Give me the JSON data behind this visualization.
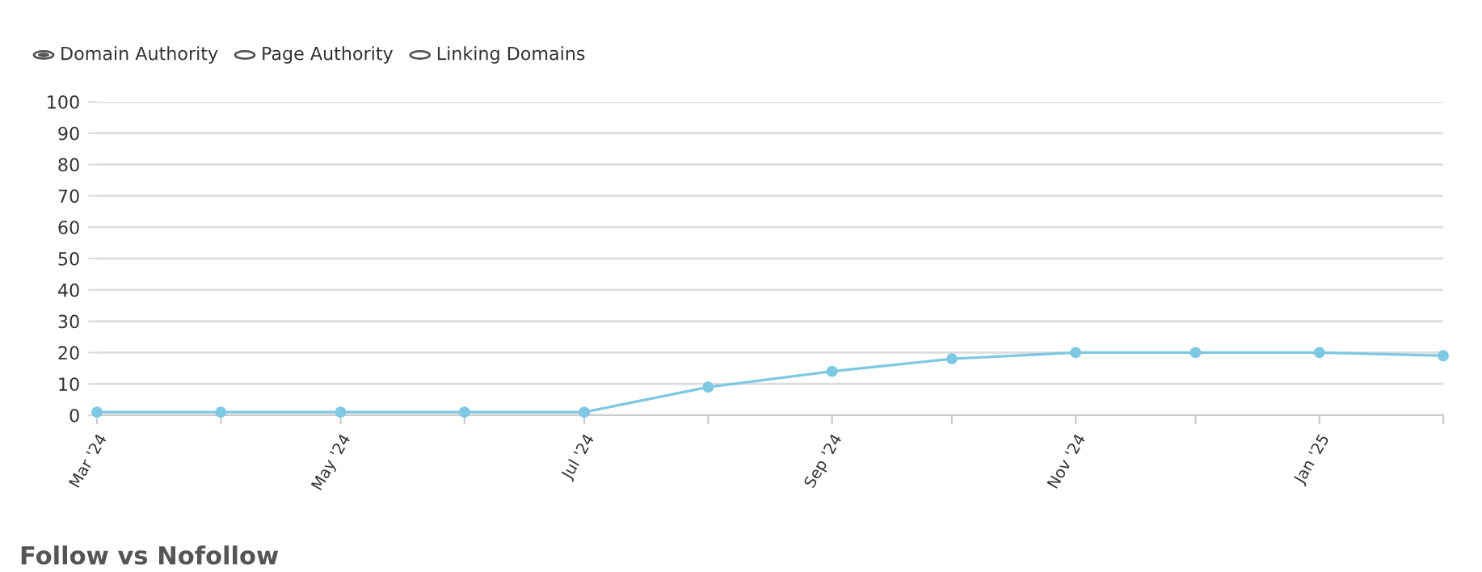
{
  "chart_data": {
    "type": "line",
    "x": [
      "2024-03",
      "2024-04",
      "2024-05",
      "2024-06",
      "2024-07",
      "2024-08",
      "2024-09",
      "2024-10",
      "2024-11",
      "2024-12",
      "2025-01",
      "2025-02"
    ],
    "series": [
      {
        "color": "#7ec8e3",
        "values": [
          1,
          1,
          1,
          1,
          1,
          9,
          14,
          18,
          20,
          20,
          20,
          19
        ]
      }
    ],
    "xlim": [
      "2024-03",
      "2025-02"
    ],
    "xticks": [
      {
        "value": "2024-03",
        "label": "Mar '24"
      },
      {
        "value": "2024-04",
        "label": null
      },
      {
        "value": "2024-05",
        "label": "May '24"
      },
      {
        "value": "2024-06",
        "label": null
      },
      {
        "value": "2024-07",
        "label": "Jul '24"
      },
      {
        "value": "2024-08",
        "label": null
      },
      {
        "value": "2024-09",
        "label": "Sep '24"
      },
      {
        "value": "2024-10",
        "label": null
      },
      {
        "value": "2024-11",
        "label": "Nov '24"
      },
      {
        "value": "2024-12",
        "label": null
      },
      {
        "value": "2025-01",
        "label": "Jan '25"
      },
      {
        "value": "2025-02",
        "label": null
      }
    ],
    "ylim": [
      0,
      100
    ],
    "yticks": [
      0,
      10,
      20,
      30,
      40,
      50,
      60,
      70,
      80,
      90,
      100
    ],
    "grid": "y",
    "marker": "circle",
    "line_style": "solid",
    "annotations": [
      "Domain Authority",
      "Page Authority",
      "Linking Domains",
      "Follow vs Nofollow"
    ]
  }
}
